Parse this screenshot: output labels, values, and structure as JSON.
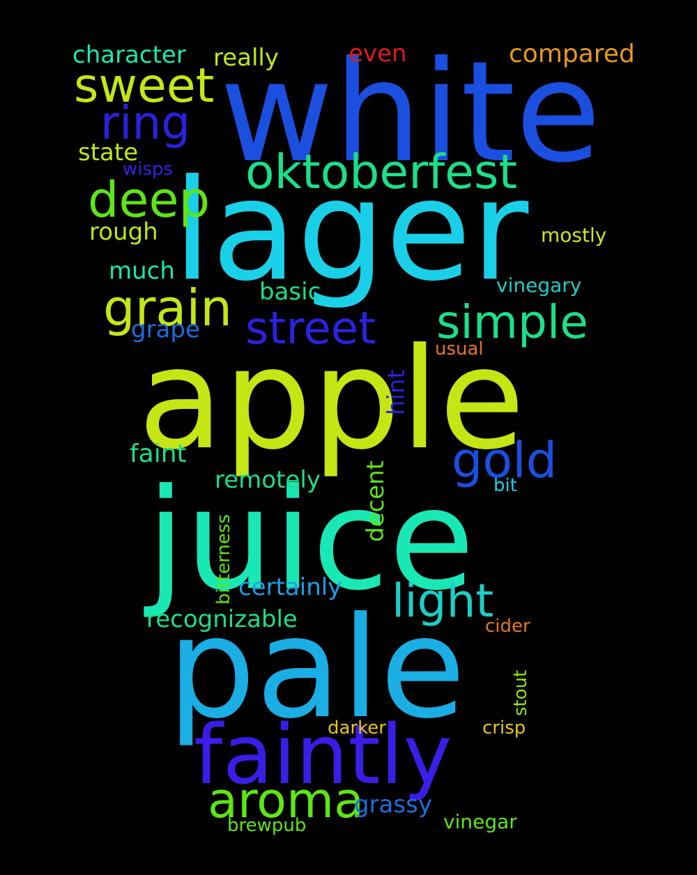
{
  "background": "#000000",
  "words": [
    {
      "text": "white",
      "color": "#1a4fe0"
    },
    {
      "text": "lager",
      "color": "#1ad0e8"
    },
    {
      "text": "apple",
      "color": "#c5e614"
    },
    {
      "text": "juice",
      "color": "#1ae8b4"
    },
    {
      "text": "pale",
      "color": "#1aaee4"
    },
    {
      "text": "faintly",
      "color": "#3a1ee8"
    },
    {
      "text": "oktoberfest",
      "color": "#1ae089"
    },
    {
      "text": "sweet",
      "color": "#c5e614"
    },
    {
      "text": "ring",
      "color": "#2a22e0"
    },
    {
      "text": "deep",
      "color": "#5ee614"
    },
    {
      "text": "grain",
      "color": "#c5e614"
    },
    {
      "text": "street",
      "color": "#2a22e0"
    },
    {
      "text": "simple",
      "color": "#1ae089"
    },
    {
      "text": "gold",
      "color": "#1a4fe0"
    },
    {
      "text": "light",
      "color": "#1ad0c8"
    },
    {
      "text": "aroma",
      "color": "#5ee614"
    },
    {
      "text": "character",
      "color": "#1ae8b4"
    },
    {
      "text": "really",
      "color": "#c5e614"
    },
    {
      "text": "even",
      "color": "#e01a1a"
    },
    {
      "text": "compared",
      "color": "#e89a1a"
    },
    {
      "text": "state",
      "color": "#c5e614"
    },
    {
      "text": "wisps",
      "color": "#3a1ee8"
    },
    {
      "text": "rough",
      "color": "#c5e614"
    },
    {
      "text": "mostly",
      "color": "#d4e614"
    },
    {
      "text": "much",
      "color": "#1ae8b4"
    },
    {
      "text": "basic",
      "color": "#1ae089"
    },
    {
      "text": "vinegary",
      "color": "#1ad0c8"
    },
    {
      "text": "grape",
      "color": "#1a6ee0"
    },
    {
      "text": "usual",
      "color": "#e8781a"
    },
    {
      "text": "hint",
      "color": "#2a22e0"
    },
    {
      "text": "faint",
      "color": "#1ae089"
    },
    {
      "text": "decent",
      "color": "#5ee614"
    },
    {
      "text": "remotely",
      "color": "#1ae089"
    },
    {
      "text": "bit",
      "color": "#1ad0e8"
    },
    {
      "text": "bitterness",
      "color": "#5ee614"
    },
    {
      "text": "certainly",
      "color": "#1aa0e8"
    },
    {
      "text": "recognizable",
      "color": "#1ae089"
    },
    {
      "text": "cider",
      "color": "#e8781a"
    },
    {
      "text": "stout",
      "color": "#8ee614"
    },
    {
      "text": "darker",
      "color": "#e8c41a"
    },
    {
      "text": "crisp",
      "color": "#e8c41a"
    },
    {
      "text": "grassy",
      "color": "#1a6ee0"
    },
    {
      "text": "brewpub",
      "color": "#5ee614"
    },
    {
      "text": "vinegar",
      "color": "#5ee614"
    }
  ]
}
